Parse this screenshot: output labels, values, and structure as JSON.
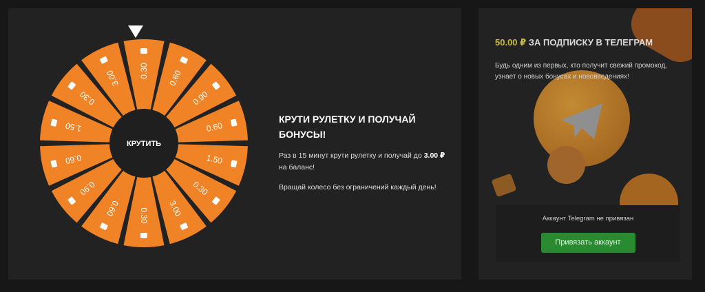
{
  "wheel": {
    "spin_label": "КРУТИТЬ",
    "segments": [
      "0.30",
      "0.60",
      "0.90",
      "0.60",
      "1.50",
      "0.30",
      "3.00",
      "0.30",
      "0.60",
      "0.90",
      "0.60",
      "1.50",
      "0.30",
      "3.00"
    ],
    "segment_color": "#f08326",
    "hub_color": "#1f1f1f",
    "segment_icon": "coins-icon"
  },
  "promo": {
    "title": "КРУТИ РУЛЕТКУ И ПОЛУЧАЙ БОНУСЫ!",
    "line1_prefix": "Раз в 15 минут крути рулетку и получай до",
    "line1_amount": "3.00 ₽",
    "line1_suffix": "на баланс!",
    "line2": "Вращай колесо без ограничений каждый день!"
  },
  "telegram": {
    "amount": "50.00 ₽",
    "title": "ЗА ПОДПИСКУ В ТЕЛЕГРАМ",
    "description": "Будь одним из первых, кто получит свежий промокод, узнает о новых бонусах и нововведениях!",
    "status": "Аккаунт Telegram не привязан",
    "bind_button": "Привязать аккаунт",
    "accent": "#c9bd3c",
    "button_color": "#2a8a30"
  }
}
